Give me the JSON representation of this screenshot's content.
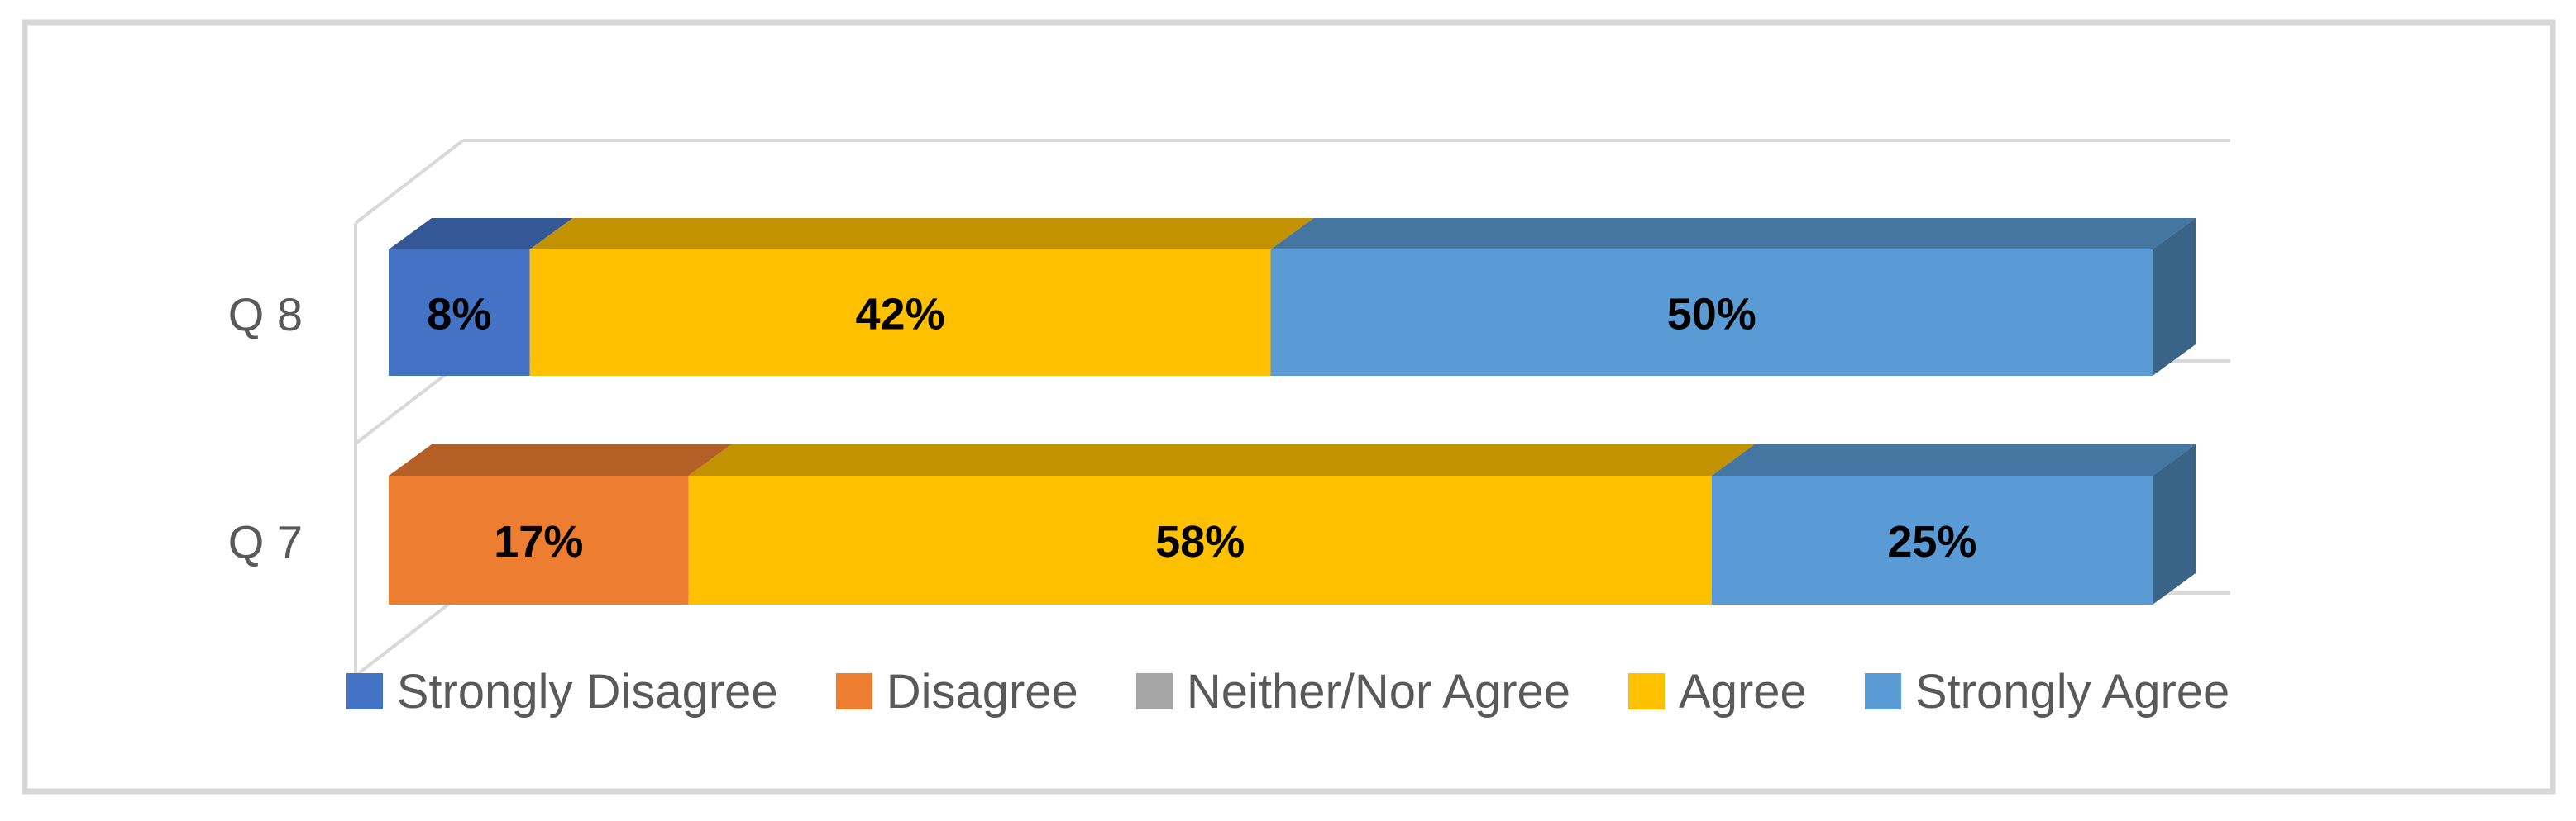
{
  "chart_data": {
    "type": "bar",
    "subtype": "3d-horizontal-100pct-stacked",
    "title": "",
    "xlabel": "",
    "ylabel": "",
    "xlim": [
      0,
      100
    ],
    "grid": false,
    "legend_position": "bottom",
    "categories": [
      "Q 8",
      "Q 7"
    ],
    "series": [
      {
        "name": "Strongly Disagree",
        "color": "#4472C4",
        "values": [
          8,
          0
        ]
      },
      {
        "name": "Disagree",
        "color": "#ED7D31",
        "values": [
          0,
          17
        ]
      },
      {
        "name": "Neither/Nor Agree",
        "color": "#A5A5A5",
        "values": [
          0,
          0
        ]
      },
      {
        "name": "Agree",
        "color": "#FFC000",
        "values": [
          42,
          58
        ]
      },
      {
        "name": "Strongly Agree",
        "color": "#5B9BD5",
        "values": [
          50,
          25
        ]
      }
    ],
    "data_labels": {
      "format": "percent",
      "q8": [
        "8%",
        "42%",
        "50%"
      ],
      "q7": [
        "17%",
        "58%",
        "25%"
      ]
    }
  },
  "styles": {
    "background": "#FFFFFF",
    "outer_border": "#D7D7D7",
    "frame_lines": "#D9D9D9",
    "category_label_color": "#595959",
    "legend_text_color": "#595959",
    "data_label_color": "#000000"
  }
}
